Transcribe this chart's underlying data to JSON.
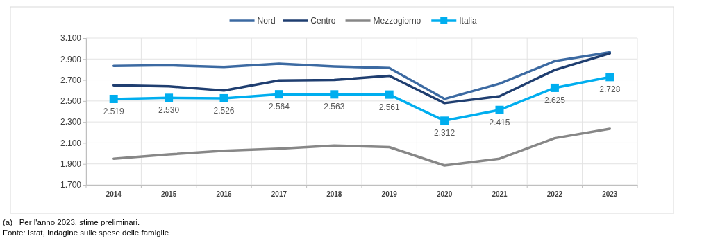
{
  "chart_data": {
    "type": "line",
    "categories": [
      "2014",
      "2015",
      "2016",
      "2017",
      "2018",
      "2019",
      "2020",
      "2021",
      "2022",
      "2023"
    ],
    "series": [
      {
        "name": "Nord",
        "color": "#3c6aa2",
        "values": [
          2835,
          2840,
          2825,
          2855,
          2830,
          2815,
          2520,
          2665,
          2880,
          2965
        ]
      },
      {
        "name": "Centro",
        "color": "#1f3e70",
        "values": [
          2650,
          2640,
          2600,
          2695,
          2700,
          2740,
          2480,
          2545,
          2795,
          2955
        ]
      },
      {
        "name": "Mezzogiorno",
        "color": "#878787",
        "values": [
          1950,
          1990,
          2025,
          2045,
          2075,
          2060,
          1885,
          1950,
          2145,
          2235
        ]
      },
      {
        "name": "Italia",
        "color": "#00aeef",
        "marker": "square",
        "values": [
          2519,
          2530,
          2526,
          2564,
          2563,
          2561,
          2312,
          2415,
          2625,
          2728
        ],
        "value_labels": [
          "2.519",
          "2.530",
          "2.526",
          "2.564",
          "2.563",
          "2.561",
          "2.312",
          "2.415",
          "2.625",
          "2.728"
        ]
      }
    ],
    "ylim": [
      1700,
      3100
    ],
    "yticks": [
      {
        "value": 1700,
        "label": "1.700"
      },
      {
        "value": 1900,
        "label": "1.900"
      },
      {
        "value": 2100,
        "label": "2.100"
      },
      {
        "value": 2300,
        "label": "2.300"
      },
      {
        "value": 2500,
        "label": "2.500"
      },
      {
        "value": 2700,
        "label": "2.700"
      },
      {
        "value": 2900,
        "label": "2.900"
      },
      {
        "value": 3100,
        "label": "3.100"
      }
    ],
    "grid": true,
    "legend": "top",
    "marker": "none",
    "annotations": [
      "(a)   Per l'anno 2023, stime preliminari.",
      "Fonte: Istat, Indagine sulle spese delle famiglie"
    ]
  }
}
